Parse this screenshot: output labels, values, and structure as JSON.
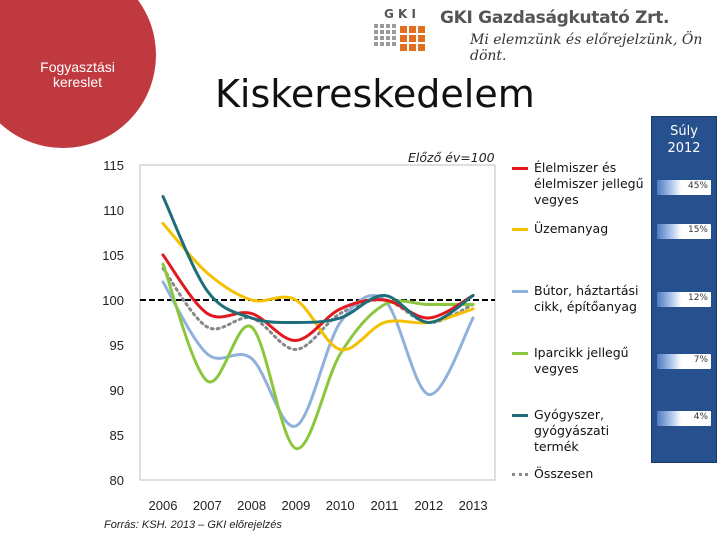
{
  "header": {
    "section_label": "Fogyasztási kereslet",
    "title": "Kiskereskedelem",
    "logo_name": "GKI Gazdaságkutató Zrt.",
    "logo_mark": "G K I",
    "slogan": "Mi elemzünk és előrejelzünk, Ön dönt."
  },
  "weights": {
    "title": "Súly 2012",
    "items": [
      "45%",
      "15%",
      "12%",
      "7%",
      "4%"
    ]
  },
  "footer": {
    "source": "Forrás: KSH. 2013 – GKI előrejelzés"
  },
  "colors": {
    "food": "#e2191e",
    "fuel": "#f5c000",
    "furniture": "#8fb1dc",
    "industrial": "#8cc63f",
    "pharma": "#1e6e79",
    "total": "#888888",
    "reference": "#000000"
  },
  "chart_data": {
    "type": "line",
    "title": "",
    "annotation": "Előző év=100",
    "xlabel": "",
    "ylabel": "",
    "x": [
      "2006",
      "2007",
      "2008",
      "2009",
      "2010",
      "2011",
      "2012",
      "2013"
    ],
    "ylim": [
      80,
      115
    ],
    "yticks": [
      80,
      85,
      90,
      95,
      100,
      105,
      110,
      115
    ],
    "reference_line": 100,
    "series": [
      {
        "key": "food",
        "name": "Élelmiszer és élelmiszer jellegű vegyes",
        "values": [
          105,
          98.5,
          98.5,
          95.5,
          99,
          100,
          98,
          100.5
        ]
      },
      {
        "key": "fuel",
        "name": "Üzemanyag",
        "values": [
          108.5,
          103,
          100,
          100,
          94.5,
          97.5,
          97.5,
          99
        ]
      },
      {
        "key": "furniture",
        "name": "Bútor, háztartási cikk, építőanyag",
        "values": [
          102,
          94,
          93.5,
          86,
          97.5,
          100,
          89.5,
          98
        ]
      },
      {
        "key": "industrial",
        "name": "Iparcikk jellegű vegyes",
        "values": [
          104,
          91,
          97,
          83.5,
          94,
          99.5,
          99.5,
          99.5
        ]
      },
      {
        "key": "pharma",
        "name": "Gyógyszer, gyógyászati termék",
        "values": [
          111.5,
          101,
          98,
          97.5,
          98,
          100.5,
          97.5,
          100.5
        ]
      },
      {
        "key": "total",
        "name": "Összesen",
        "dotted": true,
        "values": [
          103.5,
          97,
          98,
          94.5,
          98.5,
          100,
          97.5,
          99.5
        ]
      }
    ]
  }
}
